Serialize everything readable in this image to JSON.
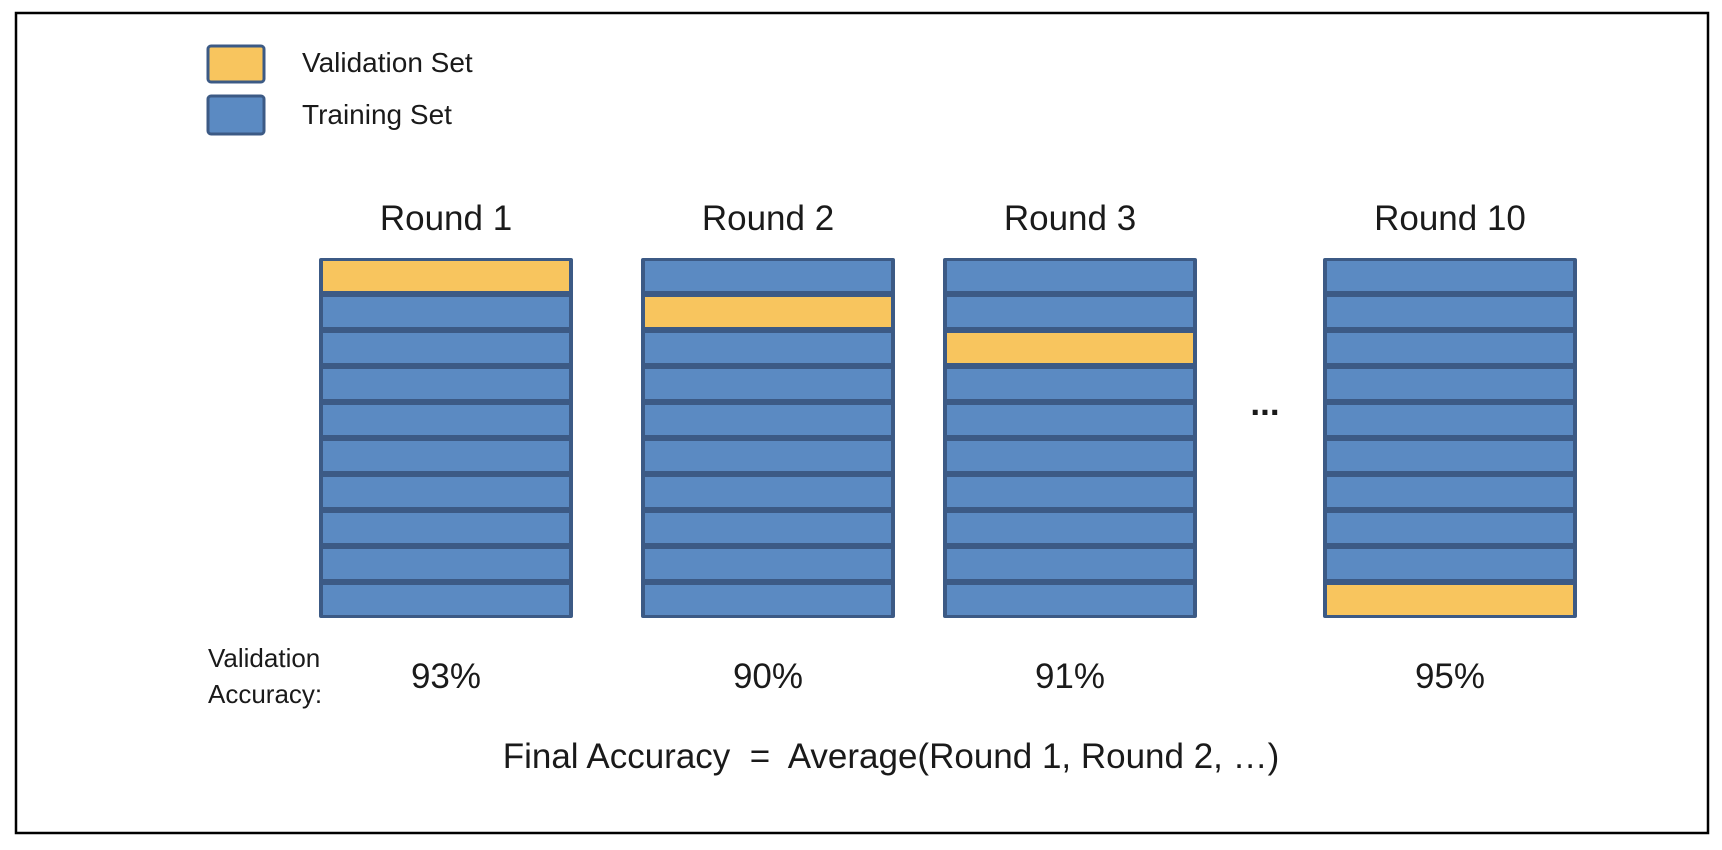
{
  "legend": {
    "validation_label": "Validation Set",
    "training_label": "Training Set"
  },
  "colors": {
    "validation": "#F8C55E",
    "training": "#5B8AC2",
    "border": "#3C5A85",
    "frame": "#000000"
  },
  "rounds": [
    {
      "title": "Round 1",
      "accuracy": "93%",
      "validation_fold": 1
    },
    {
      "title": "Round 2",
      "accuracy": "90%",
      "validation_fold": 2
    },
    {
      "title": "Round 3",
      "accuracy": "91%",
      "validation_fold": 3
    },
    {
      "title": "Round 10",
      "accuracy": "95%",
      "validation_fold": 10
    }
  ],
  "folds_per_round": 10,
  "ellipsis": "...",
  "accuracy_label_line1": "Validation",
  "accuracy_label_line2": "Accuracy:",
  "formula": "Final Accuracy  =  Average(Round 1, Round 2, …)"
}
